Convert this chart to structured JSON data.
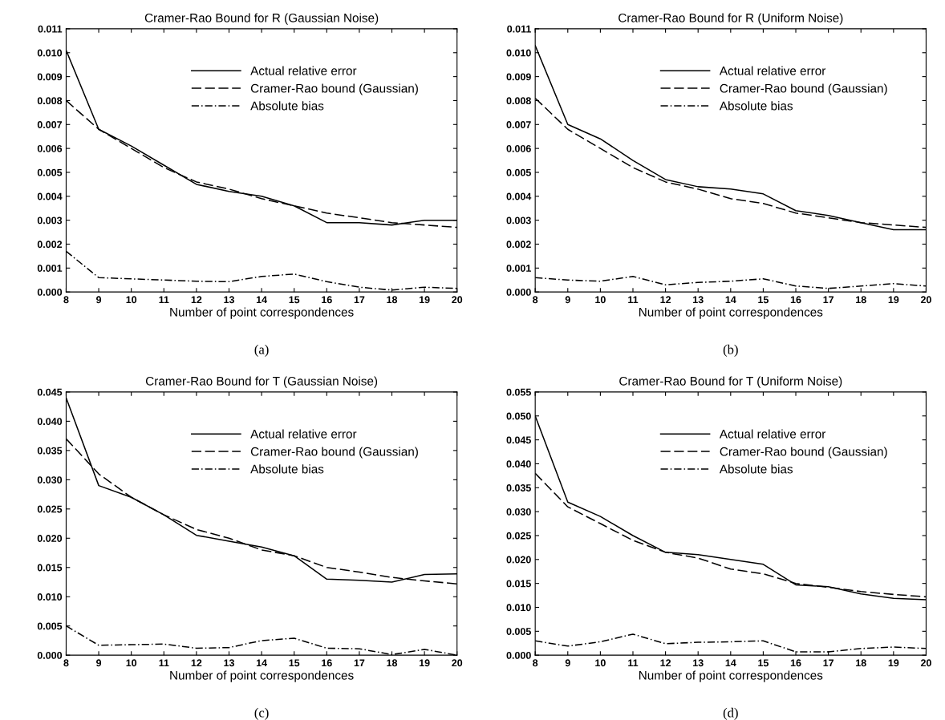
{
  "chart_data": [
    {
      "type": "line",
      "title": "Cramer-Rao Bound for R (Gaussian Noise)",
      "xlabel": "Number of point correspondences",
      "annotations": [
        "(a)"
      ],
      "legend": "top right",
      "x": [
        8,
        9,
        10,
        11,
        12,
        13,
        14,
        15,
        16,
        17,
        18,
        19,
        20
      ],
      "xlim": [
        8,
        20
      ],
      "xticks": [
        8,
        9,
        10,
        11,
        12,
        13,
        14,
        15,
        16,
        17,
        18,
        19,
        20
      ],
      "ylim": [
        0,
        0.011
      ],
      "yticks": [
        {
          "value": 0,
          "label": "0.000"
        },
        {
          "value": 0.001,
          "label": "0.001"
        },
        {
          "value": 0.002,
          "label": "0.002"
        },
        {
          "value": 0.003,
          "label": "0.003"
        },
        {
          "value": 0.004,
          "label": "0.004"
        },
        {
          "value": 0.005,
          "label": "0.005"
        },
        {
          "value": 0.006,
          "label": "0.006"
        },
        {
          "value": 0.007,
          "label": "0.007"
        },
        {
          "value": 0.008,
          "label": "0.008"
        },
        {
          "value": 0.009,
          "label": "0.009"
        },
        {
          "value": 0.01,
          "label": "0.010"
        },
        {
          "value": 0.011,
          "label": "0.011"
        }
      ],
      "series": [
        {
          "name": "Actual relative error",
          "color": "#000000",
          "line_style": "solid",
          "values": [
            0.0101,
            0.0068,
            0.0061,
            0.0053,
            0.0045,
            0.0042,
            0.004,
            0.0036,
            0.0029,
            0.0029,
            0.0028,
            0.003,
            0.003
          ]
        },
        {
          "name": "Cramer-Rao bound (Gaussian)",
          "color": "#000000",
          "line_style": "dashed",
          "values": [
            0.008,
            0.0068,
            0.006,
            0.0052,
            0.0046,
            0.0043,
            0.0039,
            0.0036,
            0.0033,
            0.0031,
            0.0029,
            0.0028,
            0.0027
          ]
        },
        {
          "name": "Absolute bias",
          "color": "#000000",
          "line_style": "dashdot",
          "values": [
            0.0017,
            0.0006,
            0.00055,
            0.0005,
            0.00045,
            0.00043,
            0.00065,
            0.00075,
            0.00043,
            0.0002,
            8e-05,
            0.0002,
            0.00015
          ]
        }
      ]
    },
    {
      "type": "line",
      "title": "Cramer-Rao Bound for R (Uniform Noise)",
      "xlabel": "Number of point correspondences",
      "annotations": [
        "(b)"
      ],
      "legend": "top right",
      "x": [
        8,
        9,
        10,
        11,
        12,
        13,
        14,
        15,
        16,
        17,
        18,
        19,
        20
      ],
      "xlim": [
        8,
        20
      ],
      "xticks": [
        8,
        9,
        10,
        11,
        12,
        13,
        14,
        15,
        16,
        17,
        18,
        19,
        20
      ],
      "ylim": [
        0,
        0.011
      ],
      "yticks": [
        {
          "value": 0,
          "label": "0.000"
        },
        {
          "value": 0.001,
          "label": "0.001"
        },
        {
          "value": 0.002,
          "label": "0.002"
        },
        {
          "value": 0.003,
          "label": "0.003"
        },
        {
          "value": 0.004,
          "label": "0.004"
        },
        {
          "value": 0.005,
          "label": "0.005"
        },
        {
          "value": 0.006,
          "label": "0.006"
        },
        {
          "value": 0.007,
          "label": "0.007"
        },
        {
          "value": 0.008,
          "label": "0.008"
        },
        {
          "value": 0.009,
          "label": "0.009"
        },
        {
          "value": 0.01,
          "label": "0.010"
        },
        {
          "value": 0.011,
          "label": "0.011"
        }
      ],
      "series": [
        {
          "name": "Actual relative error",
          "color": "#000000",
          "line_style": "solid",
          "values": [
            0.0103,
            0.007,
            0.0064,
            0.0055,
            0.0047,
            0.0044,
            0.0043,
            0.0041,
            0.0034,
            0.0032,
            0.0029,
            0.0026,
            0.0026
          ]
        },
        {
          "name": "Cramer-Rao bound (Gaussian)",
          "color": "#000000",
          "line_style": "dashed",
          "values": [
            0.0081,
            0.0068,
            0.006,
            0.0052,
            0.0046,
            0.0043,
            0.0039,
            0.0037,
            0.0033,
            0.0031,
            0.0029,
            0.0028,
            0.0027
          ]
        },
        {
          "name": "Absolute bias",
          "color": "#000000",
          "line_style": "dashdot",
          "values": [
            0.0006,
            0.0005,
            0.00045,
            0.00065,
            0.0003,
            0.0004,
            0.00045,
            0.00055,
            0.00025,
            0.00015,
            0.00025,
            0.00035,
            0.00025
          ]
        }
      ]
    },
    {
      "type": "line",
      "title": "Cramer-Rao Bound for T (Gaussian Noise)",
      "xlabel": "Number of point correspondences",
      "annotations": [
        "(c)"
      ],
      "legend": "top right",
      "x": [
        8,
        9,
        10,
        11,
        12,
        13,
        14,
        15,
        16,
        17,
        18,
        19,
        20
      ],
      "xlim": [
        8,
        20
      ],
      "xticks": [
        8,
        9,
        10,
        11,
        12,
        13,
        14,
        15,
        16,
        17,
        18,
        19,
        20
      ],
      "ylim": [
        0,
        0.045
      ],
      "yticks": [
        {
          "value": 0,
          "label": "0.000"
        },
        {
          "value": 0.005,
          "label": "0.005"
        },
        {
          "value": 0.01,
          "label": "0.010"
        },
        {
          "value": 0.015,
          "label": "0.015"
        },
        {
          "value": 0.02,
          "label": "0.020"
        },
        {
          "value": 0.025,
          "label": "0.025"
        },
        {
          "value": 0.03,
          "label": "0.030"
        },
        {
          "value": 0.035,
          "label": "0.035"
        },
        {
          "value": 0.04,
          "label": "0.040"
        },
        {
          "value": 0.045,
          "label": "0.045"
        }
      ],
      "series": [
        {
          "name": "Actual relative error",
          "color": "#000000",
          "line_style": "solid",
          "values": [
            0.044,
            0.029,
            0.027,
            0.024,
            0.0205,
            0.0195,
            0.0185,
            0.017,
            0.013,
            0.0128,
            0.0125,
            0.0138,
            0.0139
          ]
        },
        {
          "name": "Cramer-Rao bound (Gaussian)",
          "color": "#000000",
          "line_style": "dashed",
          "values": [
            0.037,
            0.031,
            0.027,
            0.024,
            0.0215,
            0.02,
            0.018,
            0.017,
            0.015,
            0.0142,
            0.0133,
            0.0127,
            0.0122
          ]
        },
        {
          "name": "Absolute bias",
          "color": "#000000",
          "line_style": "dashdot",
          "values": [
            0.005,
            0.0017,
            0.0018,
            0.0019,
            0.0012,
            0.0013,
            0.0025,
            0.0029,
            0.0012,
            0.0011,
            0.0001,
            0.001,
            0.0
          ]
        }
      ]
    },
    {
      "type": "line",
      "title": "Cramer-Rao Bound for T (Uniform Noise)",
      "xlabel": "Number of point correspondences",
      "annotations": [
        "(d)"
      ],
      "legend": "top right",
      "x": [
        8,
        9,
        10,
        11,
        12,
        13,
        14,
        15,
        16,
        17,
        18,
        19,
        20
      ],
      "xlim": [
        8,
        20
      ],
      "xticks": [
        8,
        9,
        10,
        11,
        12,
        13,
        14,
        15,
        16,
        17,
        18,
        19,
        20
      ],
      "ylim": [
        0,
        0.055
      ],
      "yticks": [
        {
          "value": 0,
          "label": "0.000"
        },
        {
          "value": 0.005,
          "label": "0.005"
        },
        {
          "value": 0.01,
          "label": "0.010"
        },
        {
          "value": 0.015,
          "label": "0.015"
        },
        {
          "value": 0.02,
          "label": "0.020"
        },
        {
          "value": 0.025,
          "label": "0.025"
        },
        {
          "value": 0.03,
          "label": "0.030"
        },
        {
          "value": 0.035,
          "label": "0.035"
        },
        {
          "value": 0.04,
          "label": "0.040"
        },
        {
          "value": 0.045,
          "label": "0.045"
        },
        {
          "value": 0.05,
          "label": "0.050"
        },
        {
          "value": 0.055,
          "label": "0.055"
        }
      ],
      "series": [
        {
          "name": "Actual relative error",
          "color": "#000000",
          "line_style": "solid",
          "values": [
            0.05,
            0.032,
            0.029,
            0.025,
            0.0215,
            0.021,
            0.02,
            0.019,
            0.0147,
            0.0143,
            0.0128,
            0.0119,
            0.0116
          ]
        },
        {
          "name": "Cramer-Rao bound (Gaussian)",
          "color": "#000000",
          "line_style": "dashed",
          "values": [
            0.038,
            0.031,
            0.0275,
            0.024,
            0.0215,
            0.0203,
            0.018,
            0.017,
            0.015,
            0.0142,
            0.0133,
            0.0127,
            0.0122
          ]
        },
        {
          "name": "Absolute bias",
          "color": "#000000",
          "line_style": "dashdot",
          "values": [
            0.003,
            0.0019,
            0.0028,
            0.0044,
            0.0024,
            0.0027,
            0.0028,
            0.003,
            0.0007,
            0.0007,
            0.0014,
            0.0017,
            0.0014
          ]
        }
      ]
    }
  ]
}
